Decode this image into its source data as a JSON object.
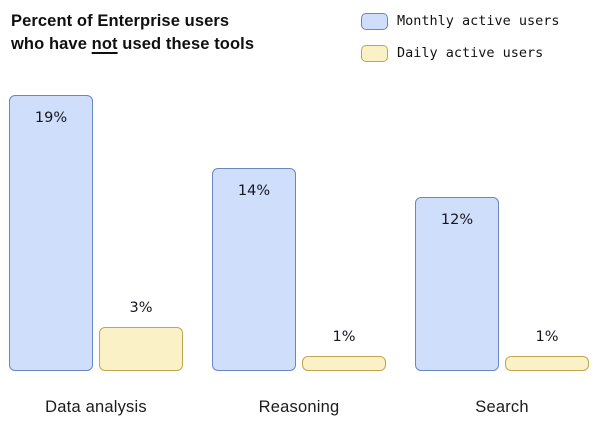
{
  "title": {
    "line1": "Percent of Enterprise users",
    "line2_prefix": "who have ",
    "line2_emphasis": "not",
    "line2_suffix": " used these tools"
  },
  "colors": {
    "monthly_fill": "#cfdefa",
    "monthly_border": "#6b87c0",
    "daily_fill": "#fbf1c6",
    "daily_border": "#c0a550",
    "background": "#ffffff",
    "text": "#101010"
  },
  "chart_data": {
    "type": "bar",
    "title": "Percent of Enterprise users who have not used these tools",
    "categories": [
      "Data analysis",
      "Reasoning",
      "Search"
    ],
    "series": [
      {
        "name": "Monthly active users",
        "values": [
          19,
          14,
          12
        ],
        "fill": "#cfdefa",
        "border": "#6b87c0",
        "value_label_position": "inside-top"
      },
      {
        "name": "Daily active users",
        "values": [
          3,
          1,
          1
        ],
        "fill": "#fbf1c6",
        "border": "#c0a550",
        "value_label_position": "above"
      }
    ],
    "value_suffix": "%",
    "ylim": [
      0,
      19
    ],
    "grid": false,
    "axes_visible": false,
    "legend_position": "top-right"
  }
}
